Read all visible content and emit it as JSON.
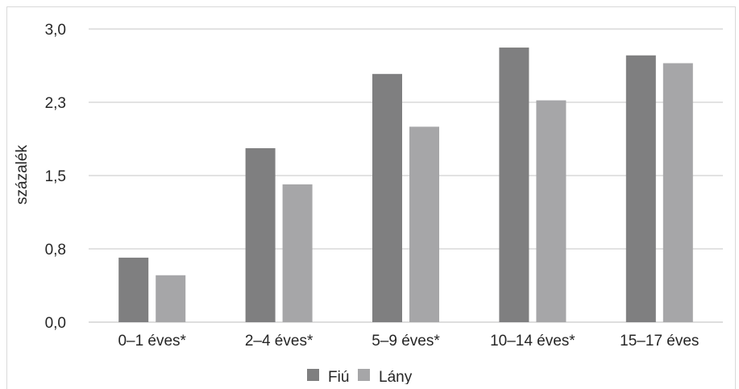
{
  "chart_data": {
    "type": "bar",
    "categories": [
      "0–1 éves*",
      "2–4 éves*",
      "5–9 éves*",
      "10–14 éves*",
      "15–17 éves"
    ],
    "series": [
      {
        "name": "Fiú",
        "color": "#7f7f80",
        "values": [
          0.66,
          1.78,
          2.54,
          2.81,
          2.73
        ]
      },
      {
        "name": "Lány",
        "color": "#a6a6a8",
        "values": [
          0.48,
          1.41,
          2.0,
          2.27,
          2.65
        ]
      }
    ],
    "ylabel": "százalék",
    "ylim": [
      0,
      3.0
    ],
    "yticks": [
      {
        "value": 0.0,
        "label": "0,0"
      },
      {
        "value": 0.75,
        "label": "0,8"
      },
      {
        "value": 1.5,
        "label": "1,5"
      },
      {
        "value": 2.25,
        "label": "2,3"
      },
      {
        "value": 3.0,
        "label": "3,0"
      }
    ],
    "grid": true,
    "legend_position": "bottom"
  }
}
